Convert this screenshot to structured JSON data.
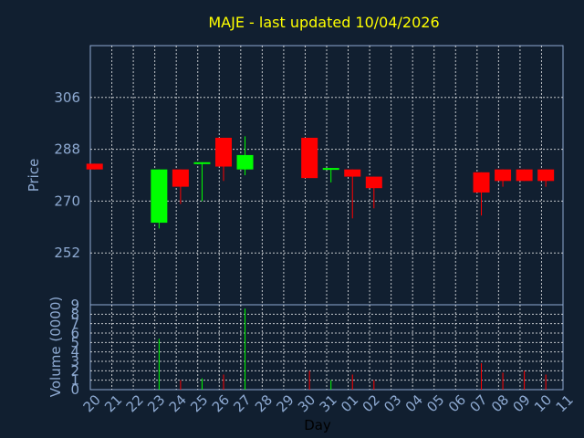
{
  "chart_data": [
    {
      "type": "candlestick",
      "title": "MAJE - last updated 10/04/2026",
      "ylabel": "Price",
      "yticks": [
        252,
        270,
        288,
        306
      ],
      "ylim": [
        234,
        324
      ],
      "grid": true,
      "x_categories": [
        "20",
        "21",
        "22",
        "23",
        "24",
        "25",
        "26",
        "27",
        "28",
        "29",
        "30",
        "31",
        "01",
        "02",
        "03",
        "04",
        "05",
        "06",
        "07",
        "08",
        "09",
        "10",
        "11"
      ],
      "xlabel": "Day",
      "colors": {
        "up": "#00ff00",
        "down": "#ff0000",
        "title": "#ffff00",
        "axis_text": "#8eaad2",
        "grid": "#ffffff",
        "background": "#111f30"
      },
      "candles": [
        {
          "x": 0.2,
          "open": 283,
          "close": 281,
          "high": 283,
          "low": 281
        },
        {
          "x": 3.2,
          "open": 262.5,
          "close": 281,
          "high": 281,
          "low": 260.5
        },
        {
          "x": 4.2,
          "open": 281,
          "close": 275,
          "high": 281,
          "low": 269
        },
        {
          "x": 5.2,
          "open": 283,
          "close": 283.5,
          "high": 283.5,
          "low": 270
        },
        {
          "x": 6.2,
          "open": 292,
          "close": 282,
          "high": 292,
          "low": 277
        },
        {
          "x": 7.2,
          "open": 281,
          "close": 286,
          "high": 292.5,
          "low": 279
        },
        {
          "x": 10.2,
          "open": 292,
          "close": 278,
          "high": 292,
          "low": 278
        },
        {
          "x": 11.2,
          "open": 281,
          "close": 281.5,
          "high": 281.5,
          "low": 276.5
        },
        {
          "x": 12.2,
          "open": 281,
          "close": 278.5,
          "high": 281,
          "low": 264
        },
        {
          "x": 13.2,
          "open": 278.5,
          "close": 274.5,
          "high": 278.5,
          "low": 267.5
        },
        {
          "x": 18.2,
          "open": 280,
          "close": 273,
          "high": 280,
          "low": 265
        },
        {
          "x": 19.2,
          "open": 281,
          "close": 277,
          "high": 281,
          "low": 275
        },
        {
          "x": 20.2,
          "open": 281,
          "close": 277,
          "high": 281,
          "low": 277
        },
        {
          "x": 21.2,
          "open": 281,
          "close": 277,
          "high": 281,
          "low": 275
        }
      ]
    },
    {
      "type": "bar",
      "ylabel": "Volume (0000)",
      "yticks": [
        0,
        1,
        2,
        3,
        4,
        5,
        6,
        7,
        8,
        9
      ],
      "ylim": [
        0,
        9
      ],
      "grid": true,
      "x_categories": [
        "20",
        "21",
        "22",
        "23",
        "24",
        "25",
        "26",
        "27",
        "28",
        "29",
        "30",
        "31",
        "01",
        "02",
        "03",
        "04",
        "05",
        "06",
        "07",
        "08",
        "09",
        "10",
        "11"
      ],
      "xlabel": "Day",
      "bars": [
        {
          "x": 3.2,
          "value": 5.4,
          "color": "#00ff00"
        },
        {
          "x": 4.2,
          "value": 1.0,
          "color": "#ff0000"
        },
        {
          "x": 5.2,
          "value": 1.2,
          "color": "#00ff00"
        },
        {
          "x": 6.2,
          "value": 1.6,
          "color": "#ff0000"
        },
        {
          "x": 7.2,
          "value": 8.6,
          "color": "#00ff00"
        },
        {
          "x": 10.2,
          "value": 2.0,
          "color": "#ff0000"
        },
        {
          "x": 11.2,
          "value": 1.0,
          "color": "#00ff00"
        },
        {
          "x": 12.2,
          "value": 1.6,
          "color": "#ff0000"
        },
        {
          "x": 13.2,
          "value": 1.0,
          "color": "#ff0000"
        },
        {
          "x": 18.2,
          "value": 2.8,
          "color": "#ff0000"
        },
        {
          "x": 19.2,
          "value": 1.8,
          "color": "#ff0000"
        },
        {
          "x": 20.2,
          "value": 2.0,
          "color": "#ff0000"
        },
        {
          "x": 21.2,
          "value": 1.6,
          "color": "#ff0000"
        }
      ]
    }
  ]
}
